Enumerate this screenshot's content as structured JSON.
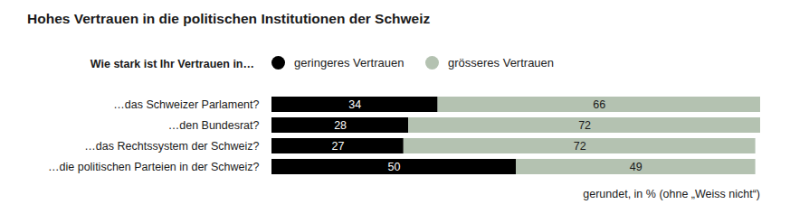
{
  "chart_data": {
    "type": "bar",
    "orientation": "horizontal",
    "stacked": true,
    "data_labels": true,
    "title": "Hohes Vertrauen in die politischen Institutionen der Schweiz",
    "ylabel": "Wie stark ist Ihr Vertrauen in…",
    "caption": "gerundet, in % (ohne „Weiss nicht“)",
    "categories": [
      "…das Schweizer Parlament?",
      "…den Bundesrat?",
      "…das Rechtssystem der Schweiz?",
      "…die politischen Parteien in der Schweiz?"
    ],
    "series": [
      {
        "name": "geringeres Vertrauen",
        "color": "#000000",
        "values": [
          34,
          28,
          27,
          50
        ]
      },
      {
        "name": "grösseres Vertrauen",
        "color": "#b4c2b1",
        "values": [
          66,
          72,
          72,
          49
        ]
      }
    ],
    "xlim": [
      0,
      100
    ],
    "tick_labels": "y",
    "grid": false,
    "legend": "top"
  }
}
